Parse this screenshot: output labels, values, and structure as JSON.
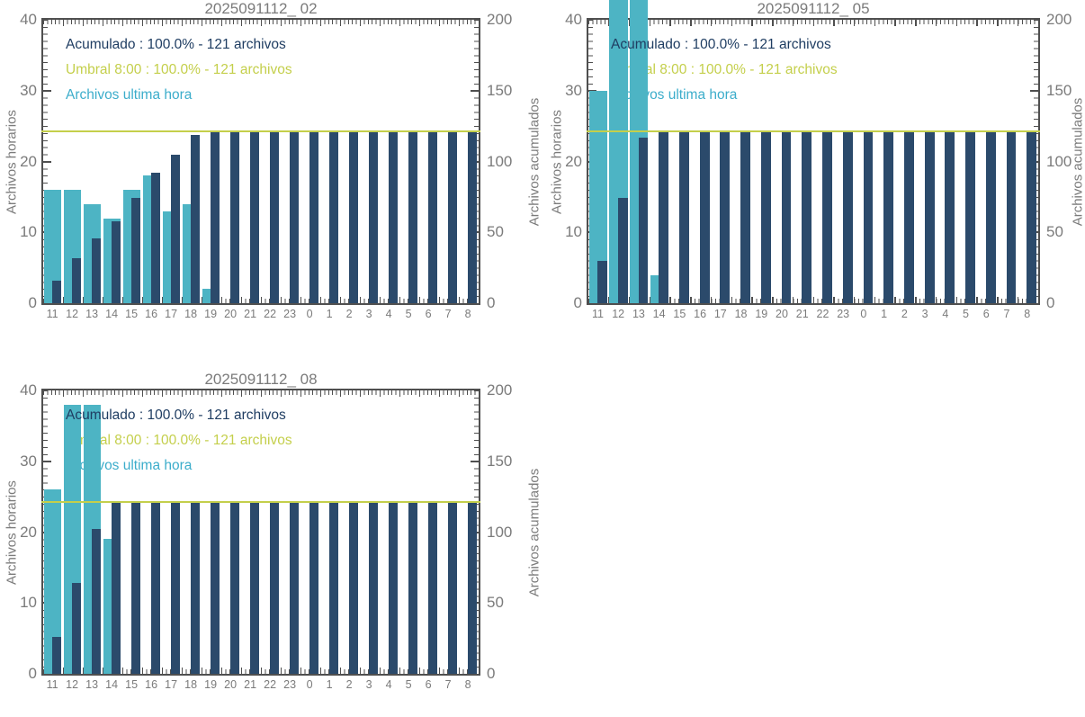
{
  "colors": {
    "hourly_bar": "#4DB4C4",
    "cumulative_bar": "#2B4A6B",
    "threshold_line": "#C4CF4B",
    "legend_acumulado_text": "#1F3D62",
    "legend_umbral_text": "#C4CF4B",
    "legend_hourly_text": "#3CADCB",
    "axis_frame": "#4F4F4F",
    "label_text": "#7B7B7B",
    "background": "#FFFFFF"
  },
  "chart_data": [
    {
      "type": "bar",
      "title": "2025091112_ 02",
      "categories": [
        "11",
        "12",
        "13",
        "14",
        "15",
        "16",
        "17",
        "18",
        "19",
        "20",
        "21",
        "22",
        "23",
        "0",
        "1",
        "2",
        "3",
        "4",
        "5",
        "6",
        "7",
        "8"
      ],
      "xlabel": "",
      "ylabel_left": "Archivos horarios",
      "ylabel_right": "Archivos acumulados",
      "ylim_left": [
        0,
        40
      ],
      "ylim_right": [
        0,
        200
      ],
      "yticks_left": [
        0,
        10,
        20,
        30,
        40
      ],
      "yticks_right": [
        0,
        50,
        100,
        150,
        200
      ],
      "grid": false,
      "legend_position": "top-left-inside",
      "series": [
        {
          "name": "Archivos ultima hora",
          "type": "bar",
          "axis": "left",
          "color": "#4DB4C4",
          "values": [
            16,
            16,
            14,
            12,
            16,
            18,
            13,
            14,
            2,
            0,
            0,
            0,
            0,
            0,
            0,
            0,
            0,
            0,
            0,
            0,
            0,
            0
          ]
        },
        {
          "name": "Acumulado",
          "type": "bar",
          "axis": "right",
          "color": "#2B4A6B",
          "values": [
            16,
            32,
            46,
            58,
            74,
            92,
            105,
            119,
            121,
            121,
            121,
            121,
            121,
            121,
            121,
            121,
            121,
            121,
            121,
            121,
            121,
            121
          ]
        }
      ],
      "threshold": {
        "name": "Umbral 8:00",
        "axis": "right",
        "value": 121,
        "color": "#C4CF4B"
      },
      "legend": [
        "Acumulado : 100.0% - 121 archivos",
        "Umbral 8:00 : 100.0% - 121 archivos",
        "Archivos ultima hora"
      ]
    },
    {
      "type": "bar",
      "title": "2025091112_ 05",
      "categories": [
        "11",
        "12",
        "13",
        "14",
        "15",
        "16",
        "17",
        "18",
        "19",
        "20",
        "21",
        "22",
        "23",
        "0",
        "1",
        "2",
        "3",
        "4",
        "5",
        "6",
        "7",
        "8"
      ],
      "xlabel": "",
      "ylabel_left": "Archivos horarios",
      "ylabel_right": "Archivos acumulados",
      "ylim_left": [
        0,
        40
      ],
      "ylim_right": [
        0,
        200
      ],
      "yticks_left": [
        0,
        10,
        20,
        30,
        40
      ],
      "yticks_right": [
        0,
        50,
        100,
        150,
        200
      ],
      "grid": false,
      "legend_position": "top-left-inside",
      "series": [
        {
          "name": "Archivos ultima hora",
          "type": "bar",
          "axis": "left",
          "color": "#4DB4C4",
          "values": [
            30,
            44,
            43,
            4,
            0,
            0,
            0,
            0,
            0,
            0,
            0,
            0,
            0,
            0,
            0,
            0,
            0,
            0,
            0,
            0,
            0,
            0
          ]
        },
        {
          "name": "Acumulado",
          "type": "bar",
          "axis": "right",
          "color": "#2B4A6B",
          "values": [
            30,
            74,
            117,
            121,
            121,
            121,
            121,
            121,
            121,
            121,
            121,
            121,
            121,
            121,
            121,
            121,
            121,
            121,
            121,
            121,
            121,
            121
          ]
        }
      ],
      "threshold": {
        "name": "Umbral 8:00",
        "axis": "right",
        "value": 121,
        "color": "#C4CF4B"
      },
      "legend": [
        "Acumulado : 100.0% - 121 archivos",
        "Umbral 8:00 : 100.0% - 121 archivos",
        "Archivos ultima hora"
      ]
    },
    {
      "type": "bar",
      "title": "2025091112_ 08",
      "categories": [
        "11",
        "12",
        "13",
        "14",
        "15",
        "16",
        "17",
        "18",
        "19",
        "20",
        "21",
        "22",
        "23",
        "0",
        "1",
        "2",
        "3",
        "4",
        "5",
        "6",
        "7",
        "8"
      ],
      "xlabel": "",
      "ylabel_left": "Archivos horarios",
      "ylabel_right": "Archivos acumulados",
      "ylim_left": [
        0,
        40
      ],
      "ylim_right": [
        0,
        200
      ],
      "yticks_left": [
        0,
        10,
        20,
        30,
        40
      ],
      "yticks_right": [
        0,
        50,
        100,
        150,
        200
      ],
      "grid": false,
      "legend_position": "top-left-inside",
      "series": [
        {
          "name": "Archivos ultima hora",
          "type": "bar",
          "axis": "left",
          "color": "#4DB4C4",
          "values": [
            26,
            38,
            38,
            19,
            0,
            0,
            0,
            0,
            0,
            0,
            0,
            0,
            0,
            0,
            0,
            0,
            0,
            0,
            0,
            0,
            0,
            0
          ]
        },
        {
          "name": "Acumulado",
          "type": "bar",
          "axis": "right",
          "color": "#2B4A6B",
          "values": [
            26,
            64,
            102,
            121,
            121,
            121,
            121,
            121,
            121,
            121,
            121,
            121,
            121,
            121,
            121,
            121,
            121,
            121,
            121,
            121,
            121,
            121
          ]
        }
      ],
      "threshold": {
        "name": "Umbral 8:00",
        "axis": "right",
        "value": 121,
        "color": "#C4CF4B"
      },
      "legend": [
        "Acumulado : 100.0% - 121 archivos",
        "Umbral 8:00 : 100.0% - 121 archivos",
        "Archivos ultima hora"
      ]
    }
  ]
}
